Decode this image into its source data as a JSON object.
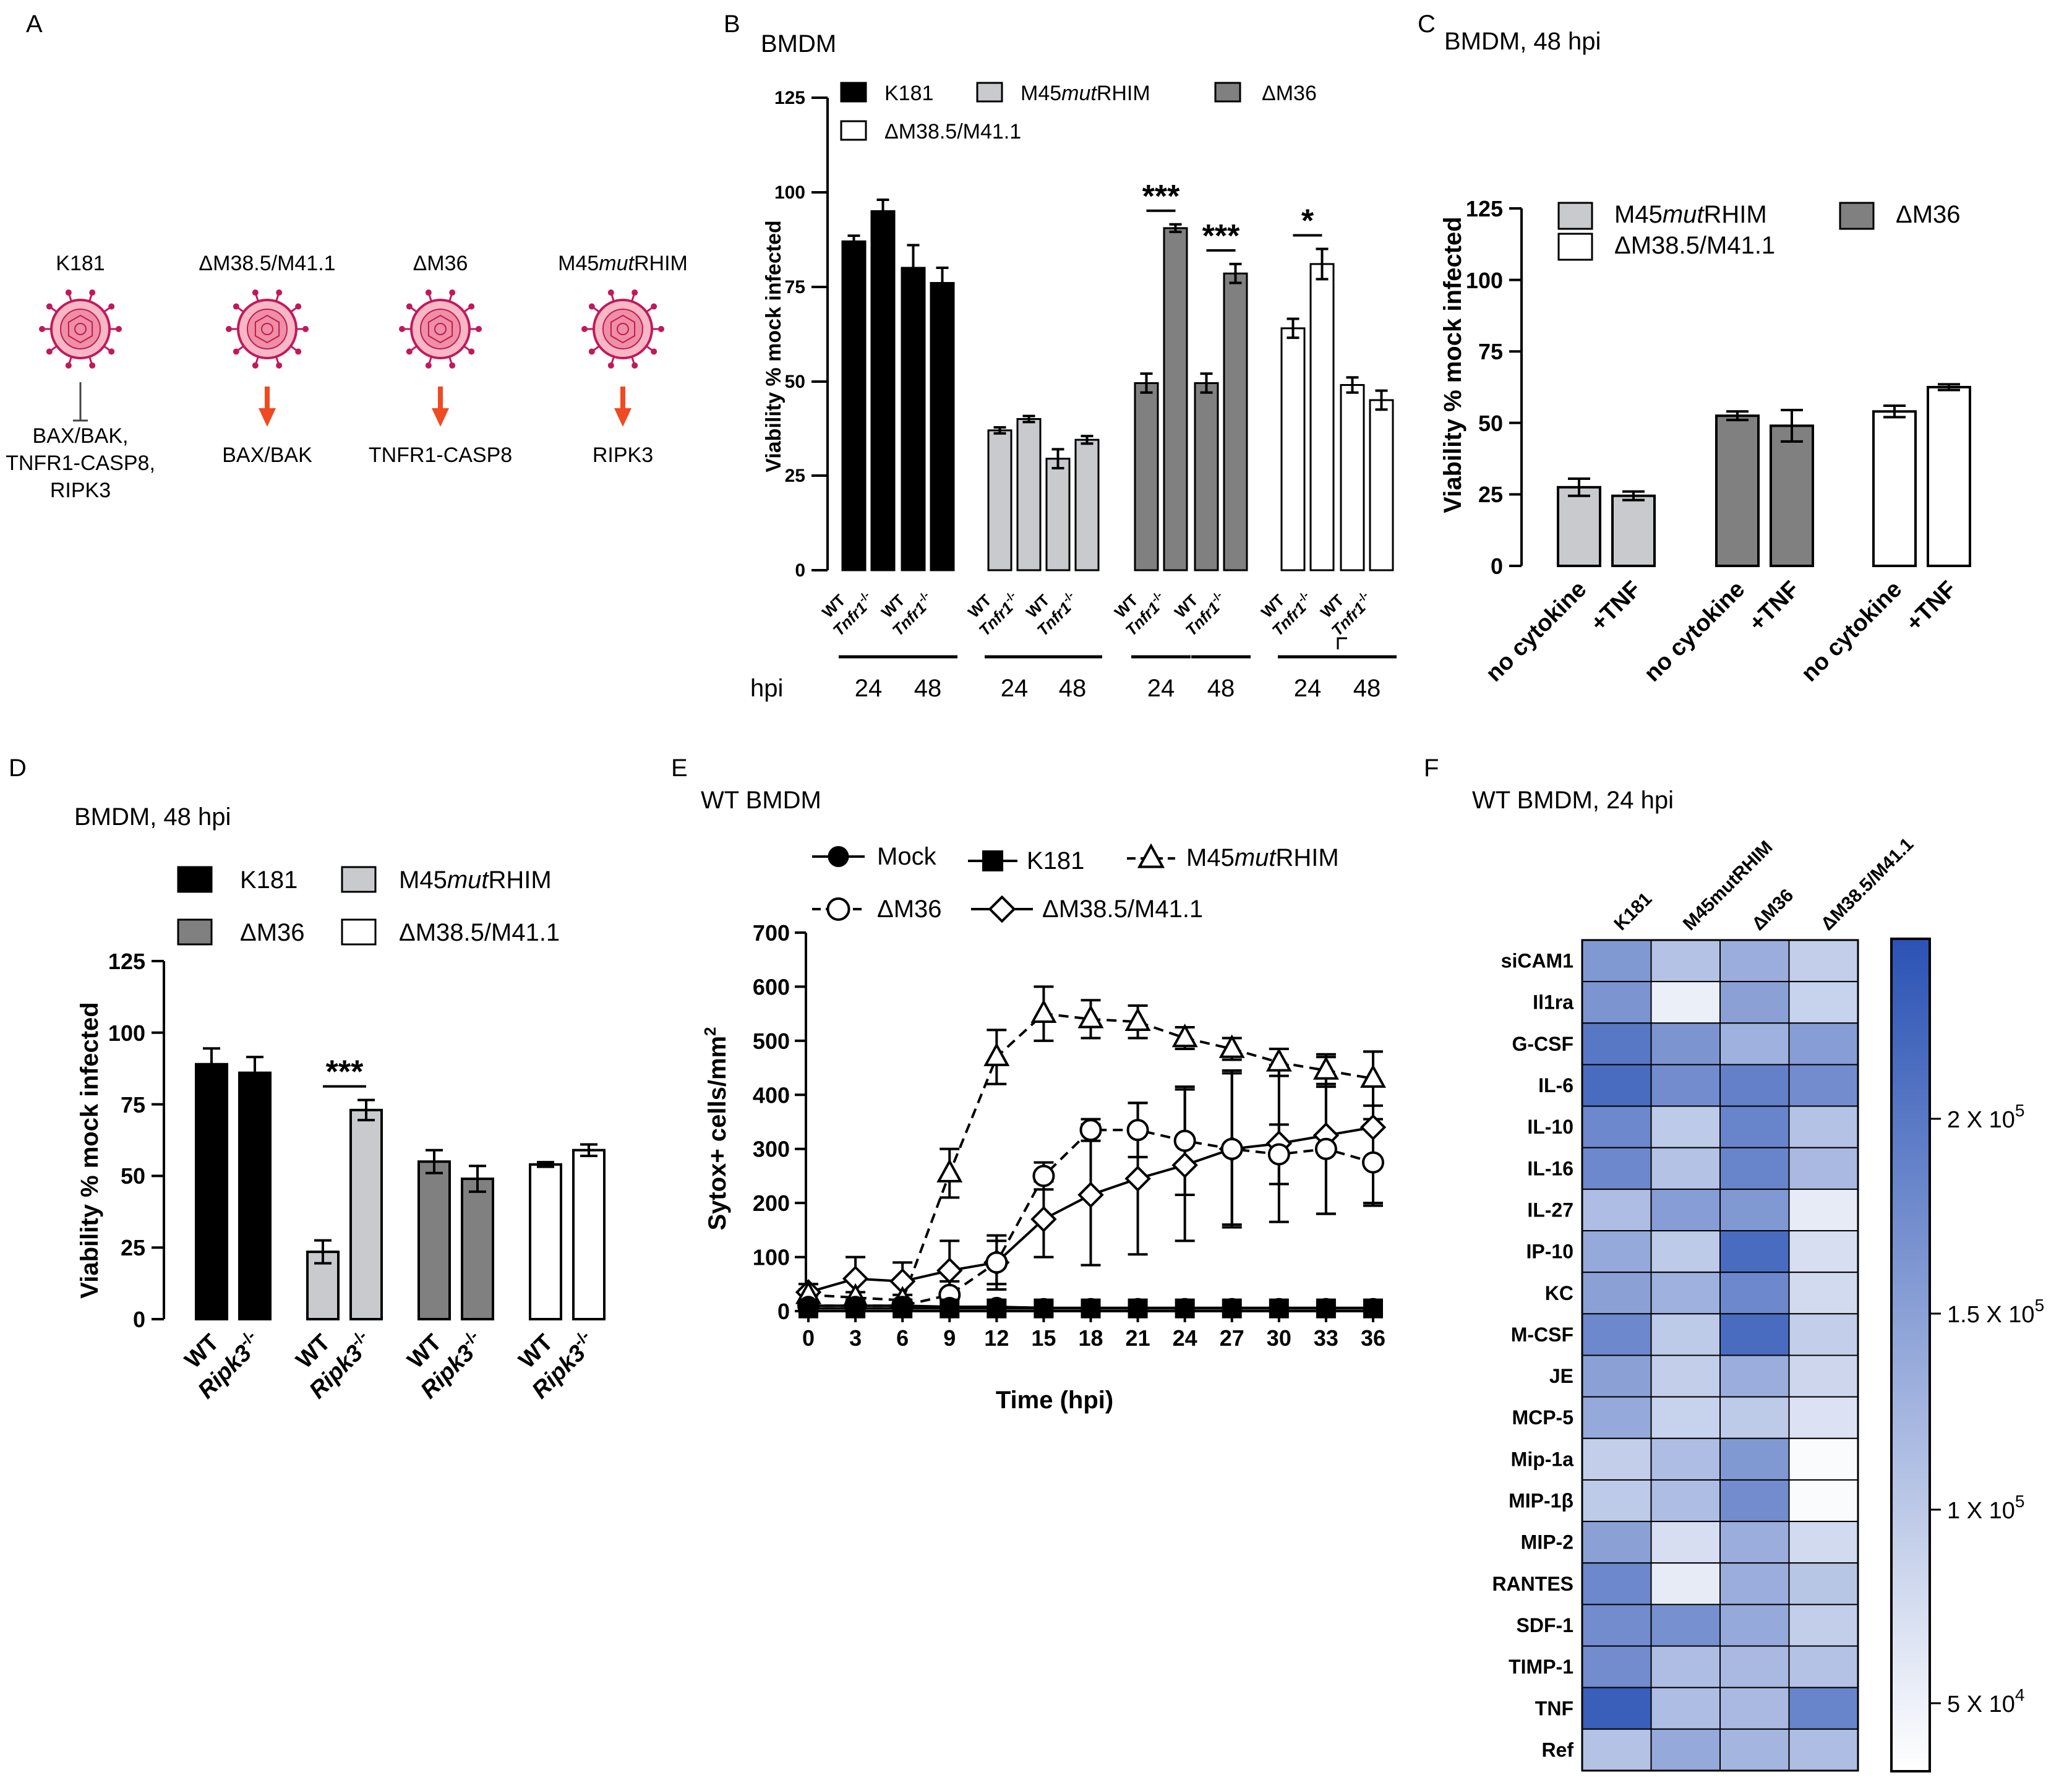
{
  "panels": {
    "A": {
      "letter": "A",
      "viruses": [
        {
          "name": "K181",
          "targets": [
            "BAX/BAK,",
            "TNFR1-CASP8,",
            "RIPK3"
          ],
          "arrow": "inhibit"
        },
        {
          "name": "ΔM38.5/M41.1",
          "targets": [
            "BAX/BAK"
          ],
          "arrow": "activate"
        },
        {
          "name": "ΔM36",
          "targets": [
            "TNFR1-CASP8"
          ],
          "arrow": "activate"
        },
        {
          "name_prefix": "M45",
          "name_italic": "mut",
          "name_suffix": "RHIM",
          "targets": [
            "RIPK3"
          ],
          "arrow": "activate"
        }
      ]
    },
    "B": {
      "letter": "B",
      "title": "BMDM",
      "ylabel": "Viability % mock infected",
      "legend": {
        "k181": "K181",
        "m45_prefix": "M45",
        "m45_italic": "mut",
        "m45_suffix": "RHIM",
        "dm36": "ΔM36",
        "dm38": "ΔM38.5/M41.1"
      },
      "hpi_label": "hpi",
      "hpi": [
        "24",
        "48",
        "24",
        "48",
        "24",
        "48",
        "24",
        "48"
      ],
      "stars": [
        "***",
        "***",
        "*"
      ],
      "wt": "WT",
      "ko": "Tnfr1",
      "axis_ticks": [
        "0",
        "25",
        "50",
        "75",
        "100",
        "125"
      ]
    },
    "C": {
      "letter": "C",
      "title": "BMDM, 48 hpi",
      "ylabel": "Viability % mock infected",
      "legend": {
        "m45_prefix": "M45",
        "m45_italic": "mut",
        "m45_suffix": "RHIM",
        "dm36": "ΔM36",
        "dm38": "ΔM38.5/M41.1"
      },
      "xcats": [
        "no cytokine",
        "+TNF"
      ],
      "axis_ticks": [
        "0",
        "25",
        "50",
        "75",
        "100",
        "125"
      ]
    },
    "D": {
      "letter": "D",
      "title": "BMDM, 48 hpi",
      "ylabel": "Viability % mock infected",
      "legend": {
        "k181": "K181",
        "m45_prefix": "M45",
        "m45_italic": "mut",
        "m45_suffix": "RHIM",
        "dm36": "ΔM36",
        "dm38": "ΔM38.5/M41.1"
      },
      "wt": "WT",
      "ko": "Ripk3",
      "star": "***",
      "axis_ticks": [
        "0",
        "25",
        "50",
        "75",
        "100",
        "125"
      ]
    },
    "E": {
      "letter": "E",
      "title": "WT BMDM",
      "ylabel": "Sytox+ cells/mm",
      "ylabel_sup": "2",
      "xlabel": "Time (hpi)",
      "legend": {
        "mock": "Mock",
        "k181": "K181",
        "m45_prefix": "M45",
        "m45_italic": "mut",
        "m45_suffix": "RHIM",
        "dm36": "ΔM36",
        "dm38": "ΔM38.5/M41.1"
      }
    },
    "F": {
      "letter": "F",
      "title": "WT BMDM, 24 hpi",
      "scale_labels": [
        "2 X 10",
        "1.5 X 10",
        "1 X 10",
        "5 X 10"
      ],
      "scale_exps": [
        "5",
        "5",
        "5",
        "4"
      ]
    }
  },
  "chart_data": [
    {
      "id": "B",
      "type": "bar",
      "title": "BMDM",
      "ylabel": "Viability % mock infected",
      "ylim": [
        0,
        125
      ],
      "groups": [
        {
          "virus": "K181",
          "hpi": "24",
          "values": [
            87,
            95
          ],
          "errors": [
            1.5,
            3
          ]
        },
        {
          "virus": "K181",
          "hpi": "48",
          "values": [
            80,
            76
          ],
          "errors": [
            6,
            4
          ]
        },
        {
          "virus": "M45mutRHIM",
          "hpi": "24",
          "values": [
            37,
            40
          ],
          "errors": [
            0.8,
            0.8
          ]
        },
        {
          "virus": "M45mutRHIM",
          "hpi": "48",
          "values": [
            29.5,
            34.5
          ],
          "errors": [
            2.5,
            1
          ]
        },
        {
          "virus": "ΔM36",
          "hpi": "24",
          "values": [
            49.5,
            90.5
          ],
          "errors": [
            2.5,
            1
          ]
        },
        {
          "virus": "ΔM36",
          "hpi": "48",
          "values": [
            49.5,
            78.5
          ],
          "errors": [
            2.5,
            2.5
          ]
        },
        {
          "virus": "ΔM38.5/M41.1",
          "hpi": "24",
          "values": [
            64,
            81
          ],
          "errors": [
            2.5,
            4
          ]
        },
        {
          "virus": "ΔM38.5/M41.1",
          "hpi": "48",
          "values": [
            49,
            45
          ],
          "errors": [
            2,
            2.5
          ]
        }
      ],
      "bar_labels": [
        "WT",
        "Tnfr1-/-"
      ],
      "significance": [
        {
          "group": 4,
          "label": "***"
        },
        {
          "group": 5,
          "label": "***"
        },
        {
          "group": 6,
          "label": "*"
        }
      ]
    },
    {
      "id": "C",
      "type": "bar",
      "title": "BMDM, 48 hpi",
      "ylabel": "Viability % mock infected",
      "ylim": [
        0,
        125
      ],
      "categories": [
        "no cytokine",
        "+TNF"
      ],
      "series": [
        {
          "name": "M45mutRHIM",
          "values": [
            27.5,
            24.5
          ],
          "errors": [
            3,
            1.5
          ]
        },
        {
          "name": "ΔM36",
          "values": [
            52.5,
            49
          ],
          "errors": [
            1.5,
            5.5
          ]
        },
        {
          "name": "ΔM38.5/M41.1",
          "values": [
            54,
            62.5
          ],
          "errors": [
            2,
            1
          ]
        }
      ]
    },
    {
      "id": "D",
      "type": "bar",
      "title": "BMDM, 48 hpi",
      "ylabel": "Viability % mock infected",
      "ylim": [
        0,
        125
      ],
      "categories": [
        "WT",
        "Ripk3-/-"
      ],
      "series": [
        {
          "name": "K181",
          "values": [
            89,
            86
          ],
          "errors": [
            5.5,
            5.5
          ]
        },
        {
          "name": "M45mutRHIM",
          "values": [
            23.5,
            73
          ],
          "errors": [
            4,
            3.5
          ]
        },
        {
          "name": "ΔM36",
          "values": [
            55,
            49
          ],
          "errors": [
            4,
            4.5
          ]
        },
        {
          "name": "ΔM38.5/M41.1",
          "values": [
            54,
            59
          ],
          "errors": [
            0.8,
            2
          ]
        }
      ],
      "significance": [
        {
          "series": 1,
          "label": "***"
        }
      ]
    },
    {
      "id": "E",
      "type": "line",
      "title": "WT BMDM",
      "xlabel": "Time (hpi)",
      "ylabel": "Sytox+ cells/mm2",
      "x": [
        0,
        3,
        6,
        9,
        12,
        15,
        18,
        21,
        24,
        27,
        30,
        33,
        36
      ],
      "xlim": [
        0,
        36
      ],
      "ylim": [
        0,
        700
      ],
      "yticks": [
        0,
        100,
        200,
        300,
        400,
        500,
        600,
        700
      ],
      "series": [
        {
          "name": "Mock",
          "marker": "circle-filled",
          "dash": "solid",
          "values": [
            10,
            10,
            10,
            8,
            8,
            6,
            6,
            6,
            6,
            6,
            6,
            6,
            6
          ],
          "errors": [
            0,
            0,
            0,
            0,
            0,
            0,
            0,
            0,
            0,
            0,
            0,
            0,
            0
          ]
        },
        {
          "name": "K181",
          "marker": "square-filled",
          "dash": "solid",
          "values": [
            5,
            5,
            5,
            5,
            5,
            5,
            5,
            5,
            5,
            5,
            5,
            5,
            5
          ],
          "errors": [
            0,
            0,
            0,
            0,
            0,
            0,
            0,
            0,
            0,
            0,
            0,
            0,
            0
          ]
        },
        {
          "name": "M45mutRHIM",
          "marker": "triangle-open",
          "dash": "dashed",
          "values": [
            30,
            25,
            20,
            255,
            470,
            550,
            540,
            535,
            505,
            485,
            460,
            445,
            430
          ],
          "errors": [
            10,
            10,
            10,
            45,
            50,
            50,
            35,
            30,
            20,
            20,
            25,
            30,
            50
          ]
        },
        {
          "name": "ΔM36",
          "marker": "circle-open",
          "dash": "dashed",
          "values": [
            10,
            10,
            10,
            30,
            90,
            250,
            335,
            335,
            315,
            300,
            290,
            300,
            275
          ],
          "errors": [
            5,
            5,
            5,
            25,
            40,
            25,
            20,
            50,
            100,
            140,
            55,
            120,
            80
          ]
        },
        {
          "name": "ΔM38.5/M41.1",
          "marker": "diamond-open",
          "dash": "solid",
          "values": [
            35,
            60,
            55,
            75,
            90,
            170,
            215,
            245,
            270,
            300,
            310,
            325,
            340
          ],
          "errors": [
            15,
            40,
            35,
            55,
            50,
            70,
            130,
            140,
            140,
            145,
            145,
            145,
            140
          ]
        }
      ]
    },
    {
      "id": "F",
      "type": "heatmap",
      "title": "WT BMDM, 24 hpi",
      "columns": [
        "K181",
        "M45mutRHIM",
        "ΔM36",
        "ΔM38.5/M41.1"
      ],
      "rows": [
        "siCAM1",
        "Il1ra",
        "G-CSF",
        "IL-6",
        "IL-10",
        "IL-16",
        "IL-27",
        "IP-10",
        "KC",
        "M-CSF",
        "JE",
        "MCP-5",
        "Mip-1a",
        "MIP-1β",
        "MIP-2",
        "RANTES",
        "SDF-1",
        "TIMP-1",
        "TNF",
        "Ref"
      ],
      "values": [
        [
          160000,
          110000,
          135000,
          95000
        ],
        [
          165000,
          55000,
          150000,
          90000
        ],
        [
          200000,
          165000,
          130000,
          155000
        ],
        [
          215000,
          175000,
          190000,
          175000
        ],
        [
          180000,
          100000,
          185000,
          110000
        ],
        [
          180000,
          110000,
          185000,
          120000
        ],
        [
          115000,
          155000,
          160000,
          60000
        ],
        [
          140000,
          100000,
          215000,
          75000
        ],
        [
          150000,
          130000,
          180000,
          80000
        ],
        [
          180000,
          100000,
          215000,
          95000
        ],
        [
          150000,
          95000,
          135000,
          85000
        ],
        [
          140000,
          90000,
          100000,
          70000
        ],
        [
          95000,
          115000,
          160000,
          40000
        ],
        [
          100000,
          115000,
          175000,
          40000
        ],
        [
          150000,
          75000,
          135000,
          80000
        ],
        [
          180000,
          60000,
          135000,
          105000
        ],
        [
          175000,
          170000,
          140000,
          95000
        ],
        [
          175000,
          115000,
          120000,
          110000
        ],
        [
          230000,
          115000,
          120000,
          185000
        ],
        [
          110000,
          140000,
          125000,
          115000
        ]
      ],
      "colorbar": {
        "min": 35000,
        "max": 245000,
        "ticks": [
          50000,
          100000,
          150000,
          200000
        ],
        "low_color": "#ffffff",
        "high_color": "#2b53b5"
      }
    }
  ]
}
